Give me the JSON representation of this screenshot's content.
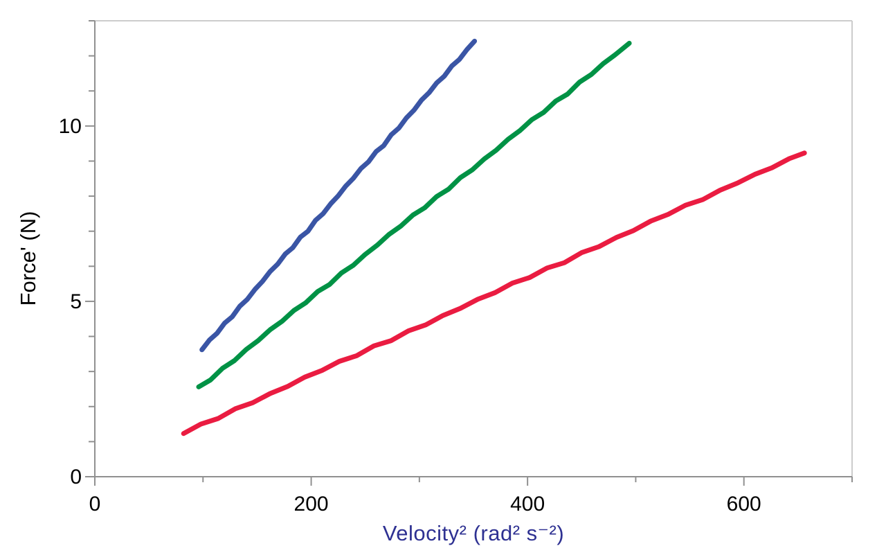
{
  "chart_data": {
    "type": "line",
    "title": "",
    "xlabel": "Velocity² (rad² s⁻²)",
    "ylabel": "Force' (N)",
    "xlim": [
      0,
      700
    ],
    "ylim": [
      0,
      13
    ],
    "x_major_ticks": [
      0,
      200,
      400,
      600
    ],
    "x_minor_ticks": [
      100,
      300,
      500,
      700
    ],
    "y_major_ticks": [
      0,
      5,
      10
    ],
    "y_minor_ticks": [
      1,
      2,
      3,
      4,
      6,
      7,
      8,
      9,
      11,
      12,
      13
    ],
    "grid": false,
    "legend": "none",
    "colors": {
      "axis": "#909090",
      "frame_light": "#cccccc",
      "tick_label": "#000000",
      "xlabel_color": "#2e3192",
      "ylabel_color": "#000000"
    },
    "series": [
      {
        "name": "blue-run",
        "color": "#3a55a5",
        "approx_fit": {
          "slope": 0.0349,
          "intercept": 0.165
        },
        "points": [
          [
            99,
            3.62
          ],
          [
            106,
            3.9
          ],
          [
            113,
            4.09
          ],
          [
            120,
            4.38
          ],
          [
            127,
            4.56
          ],
          [
            134,
            4.86
          ],
          [
            141,
            5.06
          ],
          [
            148,
            5.34
          ],
          [
            155,
            5.57
          ],
          [
            162,
            5.85
          ],
          [
            169,
            6.06
          ],
          [
            176,
            6.35
          ],
          [
            183,
            6.53
          ],
          [
            190,
            6.83
          ],
          [
            197,
            7.0
          ],
          [
            204,
            7.31
          ],
          [
            211,
            7.5
          ],
          [
            218,
            7.78
          ],
          [
            225,
            8.01
          ],
          [
            232,
            8.29
          ],
          [
            239,
            8.51
          ],
          [
            246,
            8.79
          ],
          [
            253,
            8.98
          ],
          [
            260,
            9.27
          ],
          [
            267,
            9.44
          ],
          [
            274,
            9.75
          ],
          [
            281,
            9.94
          ],
          [
            288,
            10.23
          ],
          [
            295,
            10.45
          ],
          [
            302,
            10.74
          ],
          [
            309,
            10.95
          ],
          [
            316,
            11.23
          ],
          [
            323,
            11.42
          ],
          [
            330,
            11.71
          ],
          [
            337,
            11.9
          ],
          [
            344,
            12.18
          ],
          [
            351,
            12.42
          ]
        ]
      },
      {
        "name": "green-run",
        "color": "#009245",
        "approx_fit": {
          "slope": 0.0247,
          "intercept": 0.158
        },
        "points": [
          [
            96,
            2.56
          ],
          [
            107,
            2.76
          ],
          [
            118,
            3.09
          ],
          [
            129,
            3.31
          ],
          [
            140,
            3.63
          ],
          [
            151,
            3.88
          ],
          [
            162,
            4.19
          ],
          [
            173,
            4.43
          ],
          [
            184,
            4.74
          ],
          [
            195,
            4.96
          ],
          [
            206,
            5.28
          ],
          [
            217,
            5.48
          ],
          [
            228,
            5.81
          ],
          [
            239,
            6.03
          ],
          [
            250,
            6.34
          ],
          [
            261,
            6.6
          ],
          [
            272,
            6.91
          ],
          [
            283,
            7.15
          ],
          [
            294,
            7.46
          ],
          [
            305,
            7.67
          ],
          [
            316,
            7.99
          ],
          [
            327,
            8.2
          ],
          [
            338,
            8.53
          ],
          [
            349,
            8.75
          ],
          [
            360,
            9.06
          ],
          [
            371,
            9.31
          ],
          [
            382,
            9.62
          ],
          [
            393,
            9.87
          ],
          [
            404,
            10.18
          ],
          [
            415,
            10.39
          ],
          [
            426,
            10.71
          ],
          [
            437,
            10.91
          ],
          [
            448,
            11.25
          ],
          [
            459,
            11.47
          ],
          [
            470,
            11.78
          ],
          [
            481,
            12.03
          ],
          [
            494,
            12.36
          ]
        ]
      },
      {
        "name": "red-run",
        "color": "#ea1c41",
        "approx_fit": {
          "slope": 0.0139,
          "intercept": 0.11
        },
        "points": [
          [
            82,
            1.23
          ],
          [
            98,
            1.5
          ],
          [
            114,
            1.66
          ],
          [
            130,
            1.94
          ],
          [
            146,
            2.11
          ],
          [
            162,
            2.37
          ],
          [
            178,
            2.57
          ],
          [
            194,
            2.84
          ],
          [
            210,
            3.03
          ],
          [
            226,
            3.29
          ],
          [
            242,
            3.45
          ],
          [
            258,
            3.73
          ],
          [
            274,
            3.88
          ],
          [
            290,
            4.16
          ],
          [
            306,
            4.33
          ],
          [
            322,
            4.6
          ],
          [
            338,
            4.8
          ],
          [
            354,
            5.06
          ],
          [
            370,
            5.25
          ],
          [
            386,
            5.52
          ],
          [
            402,
            5.68
          ],
          [
            418,
            5.95
          ],
          [
            434,
            6.1
          ],
          [
            450,
            6.39
          ],
          [
            466,
            6.56
          ],
          [
            482,
            6.82
          ],
          [
            498,
            7.02
          ],
          [
            514,
            7.29
          ],
          [
            530,
            7.48
          ],
          [
            546,
            7.74
          ],
          [
            562,
            7.9
          ],
          [
            578,
            8.17
          ],
          [
            594,
            8.37
          ],
          [
            610,
            8.62
          ],
          [
            626,
            8.81
          ],
          [
            642,
            9.07
          ],
          [
            656,
            9.23
          ]
        ]
      }
    ]
  }
}
